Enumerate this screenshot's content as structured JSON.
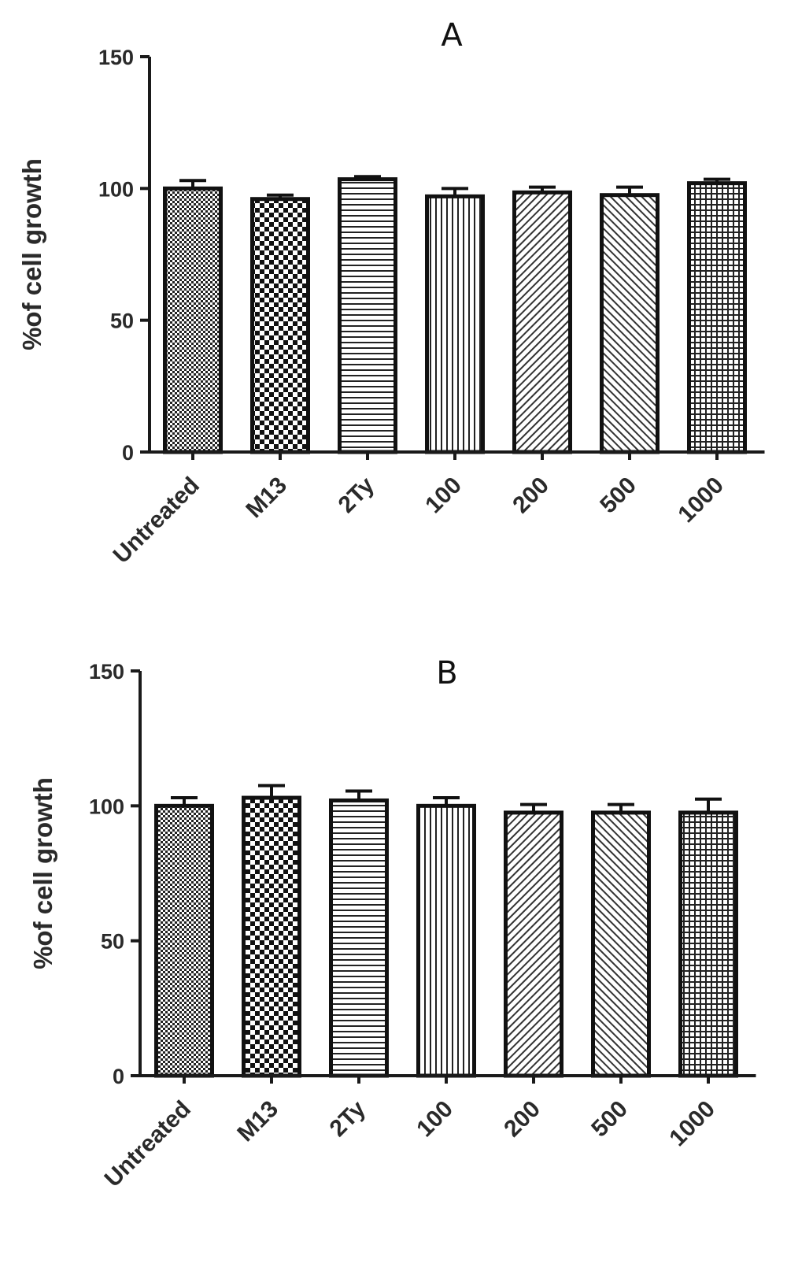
{
  "chart_data": [
    {
      "type": "bar",
      "title": "A",
      "xlabel": "",
      "ylabel": "%of cell growth",
      "ylim": [
        0,
        150
      ],
      "yticks": [
        0,
        50,
        100,
        150
      ],
      "categories": [
        "Untreated",
        "M13",
        "2Ty",
        "100",
        "200",
        "500",
        "1000"
      ],
      "values": [
        100,
        96,
        103.5,
        97,
        98.5,
        97.5,
        102
      ],
      "errors": [
        3,
        1.5,
        1,
        3,
        2,
        3,
        1.5
      ],
      "patterns": [
        "fine-check",
        "check",
        "hlines",
        "vlines",
        "diag-fwd",
        "diag-back",
        "grid"
      ],
      "grid": false,
      "legend": "none"
    },
    {
      "type": "bar",
      "title": "B",
      "xlabel": "",
      "ylabel": "%of cell growth",
      "ylim": [
        0,
        150
      ],
      "yticks": [
        0,
        50,
        100,
        150
      ],
      "categories": [
        "Untreated",
        "M13",
        "2Ty",
        "100",
        "200",
        "500",
        "1000"
      ],
      "values": [
        100,
        103,
        102,
        100,
        97.5,
        97.5,
        97.5
      ],
      "errors": [
        3,
        4.5,
        3.5,
        3,
        3,
        3,
        5
      ],
      "patterns": [
        "fine-check",
        "check",
        "hlines",
        "vlines",
        "diag-fwd",
        "diag-back",
        "grid"
      ],
      "grid": false,
      "legend": "none"
    }
  ]
}
